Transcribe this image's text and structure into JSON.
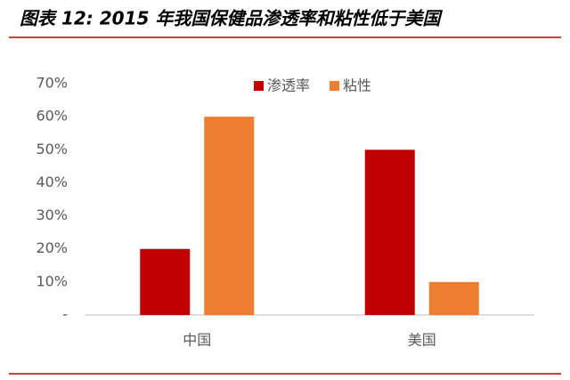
{
  "chart_data": {
    "type": "bar",
    "title": "图表 12: 2015 年我国保健品渗透率和粘性低于美国",
    "categories": [
      "中国",
      "美国"
    ],
    "series": [
      {
        "name": "渗透率",
        "color": "#c00000",
        "values": [
          20,
          50
        ]
      },
      {
        "name": "粘性",
        "color": "#ed7d31",
        "values": [
          60,
          10
        ]
      }
    ],
    "ylim": [
      0,
      70
    ],
    "yticks": [
      {
        "value": 0,
        "label": "-"
      },
      {
        "value": 10,
        "label": "10%"
      },
      {
        "value": 20,
        "label": "20%"
      },
      {
        "value": 30,
        "label": "30%"
      },
      {
        "value": 40,
        "label": "40%"
      },
      {
        "value": 50,
        "label": "50%"
      },
      {
        "value": 60,
        "label": "60%"
      },
      {
        "value": 70,
        "label": "70%"
      }
    ],
    "grid": false
  }
}
